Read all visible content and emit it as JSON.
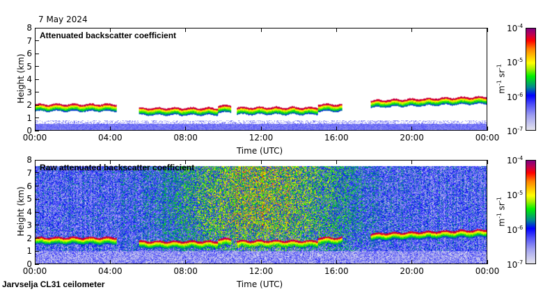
{
  "date_label": "7 May 2024",
  "footer": "Jarvselja CL31 ceilometer",
  "colors": {
    "cloud_base": "#c00030",
    "aerosol": "#4040ff"
  },
  "chart_data": [
    {
      "type": "heatmap",
      "title": "Attenuated backscatter coefficient",
      "xlabel": "Time (UTC)",
      "ylabel": "Height (km)",
      "xlim": [
        0,
        24
      ],
      "ylim": [
        0,
        8
      ],
      "xticks": [
        0,
        4,
        8,
        12,
        16,
        20,
        24
      ],
      "xtick_labels": [
        "00:00",
        "04:00",
        "08:00",
        "12:00",
        "16:00",
        "20:00",
        "00:00"
      ],
      "yticks": [
        0,
        1,
        2,
        3,
        4,
        5,
        6,
        7,
        8
      ],
      "ytick_labels": [
        "0",
        "1",
        "2",
        "3",
        "4",
        "5",
        "6",
        "7",
        "8"
      ],
      "colorbar": {
        "label_base": "m",
        "label_exp1": "-1",
        "label_mid": " sr",
        "label_exp2": "-1",
        "scale": "log",
        "range": [
          1e-07,
          0.0001
        ],
        "ticks": [
          {
            "base": "10",
            "exp": "-4"
          },
          {
            "base": "10",
            "exp": "-5"
          },
          {
            "base": "10",
            "exp": "-6"
          },
          {
            "base": "10",
            "exp": "-7"
          }
        ]
      },
      "noise": false,
      "cloud_layers": [
        {
          "t_start": 0.0,
          "t_end": 4.3,
          "base_km": 2.0
        },
        {
          "t_start": 5.5,
          "t_end": 9.7,
          "base_km": 1.7
        },
        {
          "t_start": 9.7,
          "t_end": 10.4,
          "base_km": 1.9
        },
        {
          "t_start": 10.7,
          "t_end": 15.0,
          "base_km": 1.75
        },
        {
          "t_start": 15.0,
          "t_end": 16.3,
          "base_km": 2.0
        },
        {
          "t_start": 17.8,
          "t_end": 24.0,
          "base_km": 2.3,
          "base_end_km": 2.6
        }
      ]
    },
    {
      "type": "heatmap",
      "title": "Raw attenuated backscatter coefficient",
      "xlabel": "Time (UTC)",
      "ylabel": "Height (km)",
      "xlim": [
        0,
        24
      ],
      "ylim": [
        0,
        8
      ],
      "xticks": [
        0,
        4,
        8,
        12,
        16,
        20,
        24
      ],
      "xtick_labels": [
        "00:00",
        "04:00",
        "08:00",
        "12:00",
        "16:00",
        "20:00",
        "00:00"
      ],
      "yticks": [
        0,
        1,
        2,
        3,
        4,
        5,
        6,
        7,
        8
      ],
      "ytick_labels": [
        "0",
        "1",
        "2",
        "3",
        "4",
        "5",
        "6",
        "7",
        "8"
      ],
      "colorbar": {
        "label_base": "m",
        "label_exp1": "-1",
        "label_mid": " sr",
        "label_exp2": "-1",
        "scale": "log",
        "range": [
          1e-07,
          0.0001
        ],
        "ticks": [
          {
            "base": "10",
            "exp": "-4"
          },
          {
            "base": "10",
            "exp": "-5"
          },
          {
            "base": "10",
            "exp": "-6"
          },
          {
            "base": "10",
            "exp": "-7"
          }
        ]
      },
      "noise": true,
      "cloud_layers": [
        {
          "t_start": 0.0,
          "t_end": 4.3,
          "base_km": 2.0
        },
        {
          "t_start": 5.5,
          "t_end": 9.7,
          "base_km": 1.7
        },
        {
          "t_start": 9.7,
          "t_end": 10.4,
          "base_km": 1.9
        },
        {
          "t_start": 10.7,
          "t_end": 15.0,
          "base_km": 1.75
        },
        {
          "t_start": 15.0,
          "t_end": 16.3,
          "base_km": 2.0
        },
        {
          "t_start": 17.8,
          "t_end": 24.0,
          "base_km": 2.3,
          "base_end_km": 2.6
        }
      ]
    }
  ]
}
